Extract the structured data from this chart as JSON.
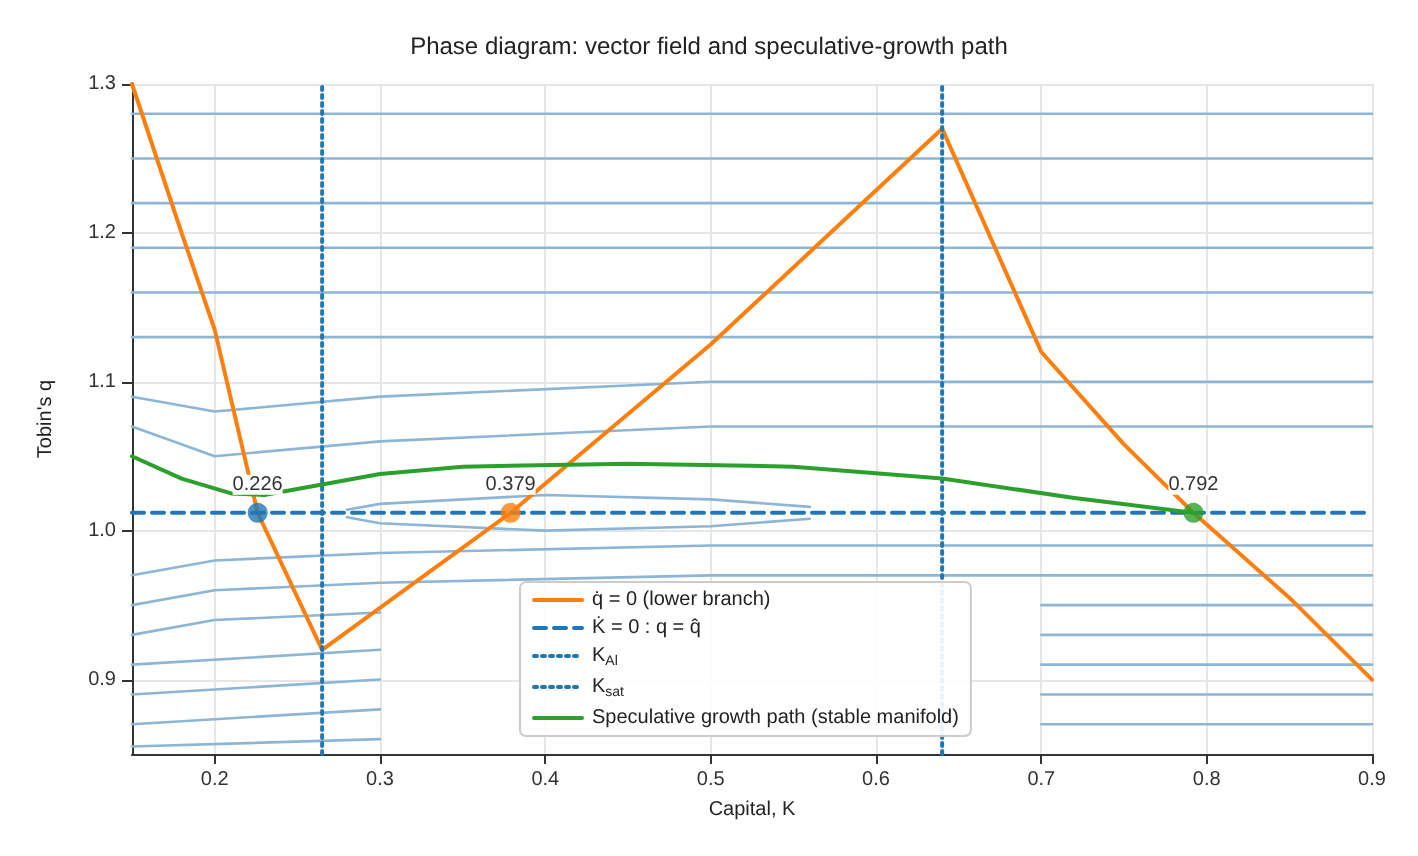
{
  "chart_data": {
    "type": "line",
    "title": "Phase diagram: vector field and speculative-growth path",
    "xlabel": "Capital, K",
    "ylabel": "Tobin's q",
    "xlim": [
      0.15,
      0.9
    ],
    "ylim": [
      0.85,
      1.3
    ],
    "xticks": [
      0.2,
      0.3,
      0.4,
      0.5,
      0.6,
      0.7,
      0.8,
      0.9
    ],
    "yticks": [
      0.9,
      {
        "value": 1,
        "label": "1.0"
      },
      1.1,
      1.2,
      1.3
    ],
    "annotations": [
      {
        "text": "0.226",
        "x": 0.226,
        "y": 1.012
      },
      {
        "text": "0.379",
        "x": 0.379,
        "y": 1.012
      },
      {
        "text": "0.792",
        "x": 0.792,
        "y": 1.012
      }
    ],
    "grid": true,
    "legend": "bottom",
    "marker": "none",
    "series": [
      {
        "color": "#8db5d6",
        "x": [
          0.15,
          0.3,
          0.5,
          0.7,
          0.9
        ],
        "values": [
          1.28,
          1.28,
          1.28,
          1.28,
          1.28
        ]
      },
      {
        "color": "#8db5d6",
        "x": [
          0.15,
          0.3,
          0.5,
          0.7,
          0.9
        ],
        "values": [
          1.25,
          1.25,
          1.25,
          1.25,
          1.25
        ]
      },
      {
        "color": "#8db5d6",
        "x": [
          0.15,
          0.3,
          0.5,
          0.7,
          0.9
        ],
        "values": [
          1.22,
          1.22,
          1.22,
          1.22,
          1.22
        ]
      },
      {
        "color": "#8db5d6",
        "x": [
          0.15,
          0.3,
          0.5,
          0.7,
          0.9
        ],
        "values": [
          1.19,
          1.19,
          1.19,
          1.19,
          1.19
        ]
      },
      {
        "color": "#8db5d6",
        "x": [
          0.15,
          0.3,
          0.5,
          0.7,
          0.9
        ],
        "values": [
          1.16,
          1.16,
          1.16,
          1.16,
          1.16
        ]
      },
      {
        "color": "#8db5d6",
        "x": [
          0.15,
          0.3,
          0.5,
          0.7,
          0.9
        ],
        "values": [
          1.13,
          1.13,
          1.13,
          1.13,
          1.13
        ]
      },
      {
        "color": "#8db5d6",
        "x": [
          0.15,
          0.2,
          0.3,
          0.5,
          0.7,
          0.9
        ],
        "values": [
          1.09,
          1.08,
          1.09,
          1.1,
          1.1,
          1.1
        ]
      },
      {
        "color": "#8db5d6",
        "x": [
          0.15,
          0.2,
          0.3,
          0.5,
          0.7,
          0.9
        ],
        "values": [
          1.07,
          1.05,
          1.06,
          1.07,
          1.07,
          1.07
        ]
      },
      {
        "color": "#8db5d6",
        "x": [
          0.15,
          0.2,
          0.3,
          0.5,
          0.7,
          0.9
        ],
        "values": [
          0.97,
          0.98,
          0.985,
          0.99,
          0.99,
          0.99
        ]
      },
      {
        "color": "#8db5d6",
        "x": [
          0.15,
          0.2,
          0.3,
          0.5,
          0.7,
          0.9
        ],
        "values": [
          0.95,
          0.96,
          0.965,
          0.97,
          0.97,
          0.97
        ]
      },
      {
        "color": "#8db5d6",
        "x": [
          0.15,
          0.2,
          0.3,
          0.5,
          0.7,
          0.9
        ],
        "values": [
          0.93,
          0.94,
          0.945,
          null,
          0.95,
          0.95
        ]
      },
      {
        "color": "#8db5d6",
        "x": [
          0.15,
          0.3,
          0.5,
          0.7,
          0.9
        ],
        "values": [
          0.91,
          0.92,
          null,
          0.93,
          0.93
        ]
      },
      {
        "color": "#8db5d6",
        "x": [
          0.15,
          0.3,
          0.5,
          0.7,
          0.9
        ],
        "values": [
          0.89,
          0.9,
          null,
          0.91,
          0.91
        ]
      },
      {
        "color": "#8db5d6",
        "x": [
          0.15,
          0.3,
          0.5,
          0.7,
          0.9
        ],
        "values": [
          0.87,
          0.88,
          null,
          0.89,
          0.89
        ]
      },
      {
        "color": "#8db5d6",
        "x": [
          0.15,
          0.3,
          0.5,
          0.7,
          0.9
        ],
        "values": [
          0.855,
          0.86,
          null,
          0.87,
          0.87
        ]
      },
      {
        "color": "#8db5d6",
        "x": [
          0.28,
          0.3,
          0.4,
          0.5,
          0.56
        ],
        "values": [
          1.014,
          1.018,
          1.024,
          1.021,
          1.016
        ]
      },
      {
        "color": "#8db5d6",
        "x": [
          0.28,
          0.3,
          0.4,
          0.5,
          0.56
        ],
        "values": [
          1.009,
          1.005,
          1.0,
          1.003,
          1.008
        ]
      },
      {
        "name": "q̇ = 0 (lower branch)",
        "color": "#ff7f0e",
        "x": [
          0.15,
          0.18,
          0.2,
          0.226,
          0.265,
          0.379,
          0.5,
          0.64,
          0.7,
          0.75,
          0.792,
          0.85,
          0.9
        ],
        "values": [
          1.3,
          1.2,
          1.135,
          1.012,
          0.92,
          1.012,
          1.125,
          1.27,
          1.12,
          1.058,
          1.012,
          0.955,
          0.9
        ]
      },
      {
        "name": "K̇ = 0 : q = q̂",
        "color": "#1f77b4",
        "line_style": "dashed",
        "x": [
          0.15,
          0.9
        ],
        "values": [
          1.012,
          1.012
        ]
      },
      {
        "name": "K$_{Al}$",
        "color": "#1f77b4",
        "line_style": "dotted",
        "x": [
          0.265,
          0.265
        ],
        "values": [
          0.85,
          1.3
        ]
      },
      {
        "name": "K$_{sat}$",
        "color": "#1f77b4",
        "line_style": "dotted",
        "x": [
          0.64,
          0.64
        ],
        "values": [
          0.85,
          1.3
        ]
      },
      {
        "name": "Speculative growth path (stable manifold)",
        "color": "#2ca02c",
        "x": [
          0.15,
          0.18,
          0.21,
          0.23,
          0.26,
          0.3,
          0.35,
          0.45,
          0.55,
          0.64,
          0.72,
          0.792
        ],
        "values": [
          1.05,
          1.035,
          1.025,
          1.024,
          1.03,
          1.038,
          1.043,
          1.045,
          1.043,
          1.035,
          1.022,
          1.012
        ]
      },
      {
        "type": "scatter",
        "marker": "circle",
        "x": [
          0.226,
          0.379,
          0.792
        ],
        "values": [
          1.012,
          1.012,
          1.012
        ],
        "colors": [
          "#1f77b4",
          "#ff7f0e",
          "#2ca02c"
        ]
      }
    ]
  }
}
